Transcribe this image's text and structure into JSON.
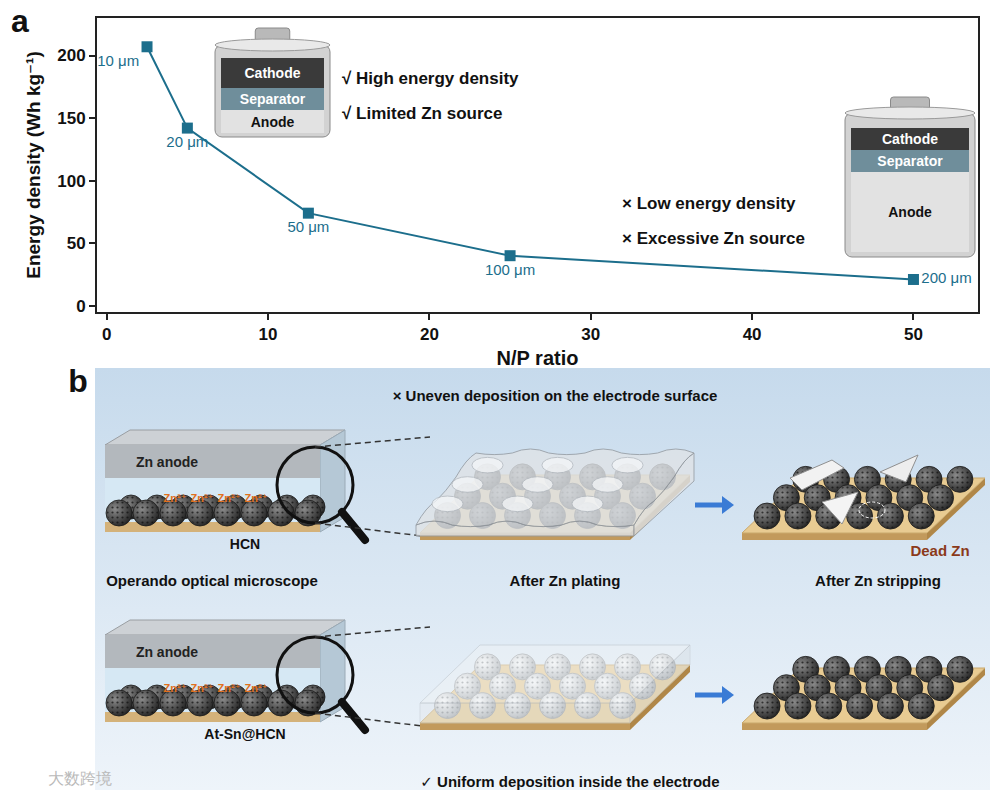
{
  "panel_labels": [
    "a",
    "b"
  ],
  "chart_data": {
    "type": "line",
    "x": [
      2.5,
      5,
      12.5,
      25,
      50
    ],
    "values": [
      207,
      142,
      74,
      40,
      21
    ],
    "point_labels": [
      "10 μm",
      "20 μm",
      "50 μm",
      "100 μm",
      "200 μm"
    ],
    "color": "#1c6e8c",
    "marker": "square",
    "line_style": "solid",
    "x_label": "N/P ratio",
    "y_label": "Energy density (Wh kg⁻¹)",
    "xlim": [
      -0.6,
      54
    ],
    "xticks": [
      0,
      10,
      20,
      30,
      40,
      50
    ],
    "ylim": [
      -5,
      230
    ],
    "yticks": [
      0,
      50,
      100,
      150,
      200
    ],
    "grid": false,
    "annotations": [
      "√ High energy density",
      "√ Limited Zn source",
      "× Low energy density",
      "× Excessive Zn source"
    ]
  },
  "panel_a_icons": {
    "layers": [
      "Cathode",
      "Separator",
      "Anode"
    ]
  },
  "panel_b": {
    "top_caption": "× Uneven deposition on the electrode surface",
    "bottom_caption": "✓ Uniform deposition inside the electrode",
    "stages": [
      "Operando optical microscope",
      "After Zn plating",
      "After Zn stripping"
    ],
    "rows": [
      {
        "anode": "Zn anode",
        "ion": "Zn²⁺",
        "electrode": "HCN",
        "stripping_note": "Dead Zn"
      },
      {
        "anode": "Zn anode",
        "ion": "Zn²⁺",
        "electrode": "At-Sn@HCN"
      }
    ]
  },
  "watermark": "大数跨境"
}
